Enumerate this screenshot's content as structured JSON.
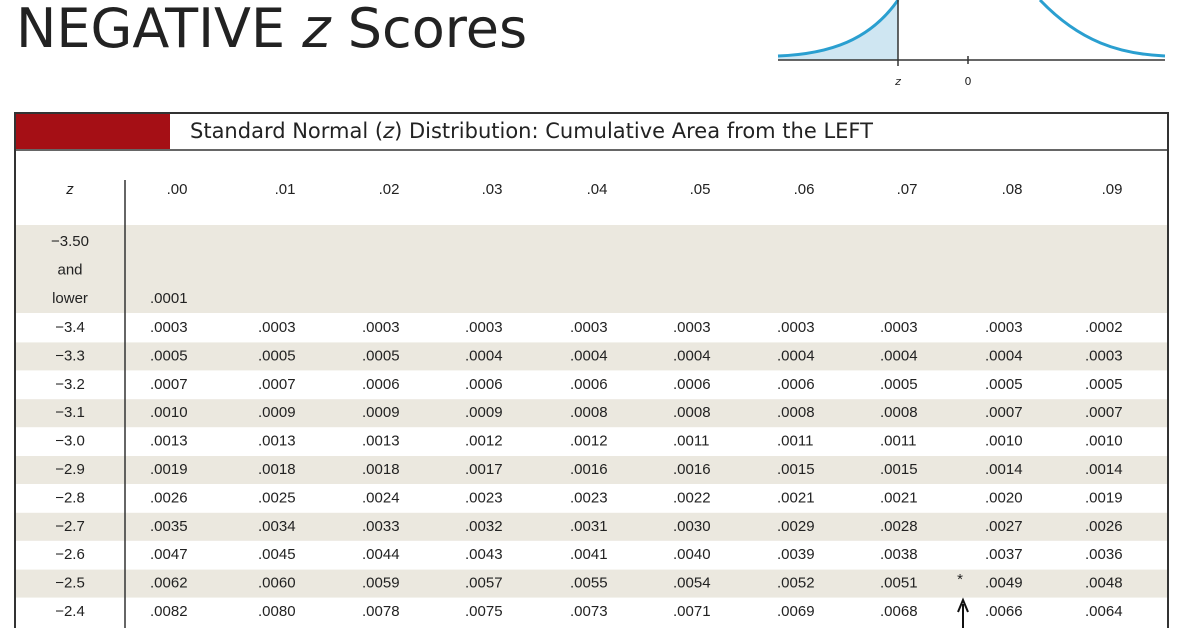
{
  "header": {
    "title": [
      "NEGATIVE",
      "z",
      "Scores"
    ],
    "curve_labels": [
      "z",
      "0"
    ]
  },
  "table": {
    "caption": [
      "Standard Normal (",
      "z",
      ") Distribution: Cumulative Area from the LEFT"
    ],
    "columns": [
      "z",
      ".00",
      ".01",
      ".02",
      ".03",
      ".04",
      ".05",
      ".06",
      ".07",
      ".08",
      ".09"
    ],
    "first_row": {
      "label": [
        "−3.50",
        "and",
        "lower"
      ],
      "value": ".0001"
    },
    "rows": [
      [
        "−3.4",
        ".0003",
        ".0003",
        ".0003",
        ".0003",
        ".0003",
        ".0003",
        ".0003",
        ".0003",
        ".0003",
        ".0002"
      ],
      [
        "−3.3",
        ".0005",
        ".0005",
        ".0005",
        ".0004",
        ".0004",
        ".0004",
        ".0004",
        ".0004",
        ".0004",
        ".0003"
      ],
      [
        "−3.2",
        ".0007",
        ".0007",
        ".0006",
        ".0006",
        ".0006",
        ".0006",
        ".0006",
        ".0005",
        ".0005",
        ".0005"
      ],
      [
        "−3.1",
        ".0010",
        ".0009",
        ".0009",
        ".0009",
        ".0008",
        ".0008",
        ".0008",
        ".0008",
        ".0007",
        ".0007"
      ],
      [
        "−3.0",
        ".0013",
        ".0013",
        ".0013",
        ".0012",
        ".0012",
        ".0011",
        ".0011",
        ".0011",
        ".0010",
        ".0010"
      ],
      [
        "−2.9",
        ".0019",
        ".0018",
        ".0018",
        ".0017",
        ".0016",
        ".0016",
        ".0015",
        ".0015",
        ".0014",
        ".0014"
      ],
      [
        "−2.8",
        ".0026",
        ".0025",
        ".0024",
        ".0023",
        ".0023",
        ".0022",
        ".0021",
        ".0021",
        ".0020",
        ".0019"
      ],
      [
        "−2.7",
        ".0035",
        ".0034",
        ".0033",
        ".0032",
        ".0031",
        ".0030",
        ".0029",
        ".0028",
        ".0027",
        ".0026"
      ],
      [
        "−2.6",
        ".0047",
        ".0045",
        ".0044",
        ".0043",
        ".0041",
        ".0040",
        ".0039",
        ".0038",
        ".0037",
        ".0036"
      ],
      [
        "−2.5",
        ".0062",
        ".0060",
        ".0059",
        ".0057",
        ".0055",
        ".0054",
        ".0052",
        ".0051",
        ".0049",
        ".0048"
      ],
      [
        "−2.4",
        ".0082",
        ".0080",
        ".0078",
        ".0075",
        ".0073",
        ".0071",
        ".0069",
        ".0068",
        ".0066",
        ".0064"
      ]
    ],
    "annotation": "*"
  }
}
